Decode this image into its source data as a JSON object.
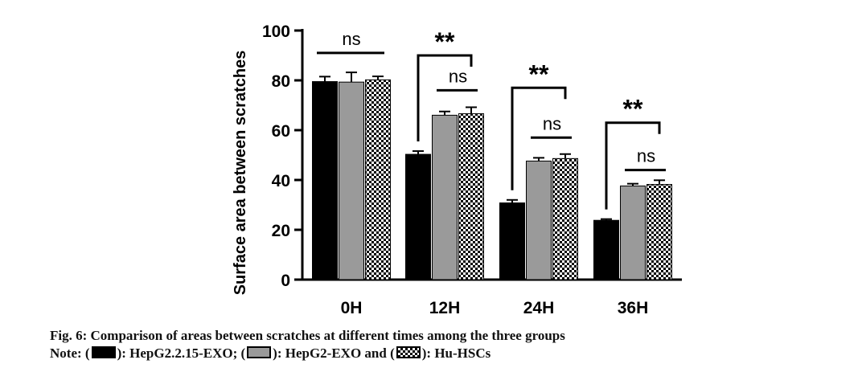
{
  "chart_data": {
    "type": "bar",
    "categories": [
      "0H",
      "12H",
      "24H",
      "36H"
    ],
    "ylabel": "Surface area between scratches",
    "xlabel": "",
    "ylim": [
      0,
      100
    ],
    "yticks": [
      0,
      20,
      40,
      60,
      80,
      100
    ],
    "series": [
      {
        "values": [
          79.5,
          50.3,
          30.8,
          23.8
        ],
        "errors": [
          2.0,
          1.3,
          1.2,
          0.5
        ],
        "color": "#000000",
        "fill": "solid"
      },
      {
        "values": [
          79.3,
          66.0,
          47.6,
          37.6
        ],
        "errors": [
          3.9,
          1.5,
          1.3,
          0.9
        ],
        "color": "#9a9a9a",
        "fill": "solid"
      },
      {
        "values": [
          80.2,
          66.6,
          48.6,
          38.2
        ],
        "errors": [
          1.4,
          2.6,
          1.8,
          1.7
        ],
        "color": "#000000",
        "fill": "checkered"
      }
    ],
    "significance": [
      {
        "category": "0H",
        "label": "ns",
        "from_series": 0,
        "to_series": 2,
        "level": 91
      },
      {
        "category": "12H",
        "label": "**",
        "from_series": 0,
        "to_series": 2,
        "level": 90
      },
      {
        "category": "12H",
        "label": "ns",
        "from_series": 1,
        "to_series": 2,
        "level": 76
      },
      {
        "category": "24H",
        "label": "**",
        "from_series": 0,
        "to_series": 2,
        "level": 77
      },
      {
        "category": "24H",
        "label": "ns",
        "from_series": 1,
        "to_series": 2,
        "level": 57
      },
      {
        "category": "36H",
        "label": "**",
        "from_series": 0,
        "to_series": 2,
        "level": 63
      },
      {
        "category": "36H",
        "label": "ns",
        "from_series": 1,
        "to_series": 2,
        "level": 44
      }
    ]
  },
  "caption": {
    "title": "Fig. 6: Comparison of areas between scratches at different times among the three groups",
    "note_prefix": "Note: (",
    "legend": [
      {
        "close_text": "): HepG2.2.15-EXO; ("
      },
      {
        "close_text": "): HepG2-EXO and ("
      },
      {
        "close_text": "): Hu-HSCs"
      }
    ]
  }
}
